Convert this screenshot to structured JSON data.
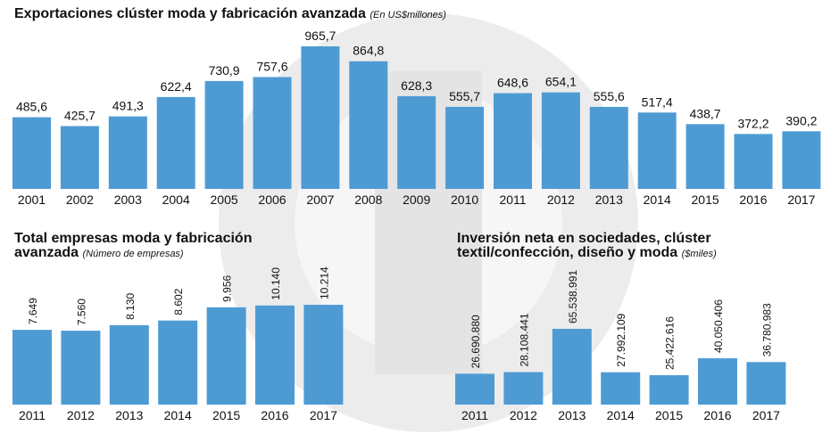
{
  "chart_data": [
    {
      "type": "bar",
      "title": [
        "Exportaciones clúster moda y fabricación avanzada"
      ],
      "subtitle": "(En US$millones)",
      "categories": [
        "2001",
        "2002",
        "2003",
        "2004",
        "2005",
        "2006",
        "2007",
        "2008",
        "2009",
        "2010",
        "2011",
        "2012",
        "2013",
        "2014",
        "2015",
        "2016",
        "2017"
      ],
      "values": [
        485.6,
        425.7,
        491.3,
        622.4,
        730.9,
        757.6,
        965.7,
        864.8,
        628.3,
        555.7,
        648.6,
        654.1,
        555.6,
        517.4,
        438.7,
        372.2,
        390.2
      ],
      "value_labels": [
        "485,6",
        "425,7",
        "491,3",
        "622,4",
        "730,9",
        "757,6",
        "965,7",
        "864,8",
        "628,3",
        "555,7",
        "648,6",
        "654,1",
        "555,6",
        "517,4",
        "438,7",
        "372,2",
        "390,2"
      ],
      "color": "#4e9bd4"
    },
    {
      "type": "bar",
      "title": [
        "Total empresas moda y fabricación",
        "avanzada"
      ],
      "subtitle": "(Número de empresas)",
      "categories": [
        "2011",
        "2012",
        "2013",
        "2014",
        "2015",
        "2016",
        "2017"
      ],
      "values": [
        7649,
        7560,
        8130,
        8602,
        9956,
        10140,
        10214
      ],
      "value_labels": [
        "7.649",
        "7.560",
        "8.130",
        "8.602",
        "9.956",
        "10.140",
        "10.214"
      ],
      "color": "#4e9bd4"
    },
    {
      "type": "bar",
      "title": [
        "Inversión neta en sociedades, clúster",
        "textil/confección, diseño y moda"
      ],
      "subtitle": "($miles)",
      "categories": [
        "2011",
        "2012",
        "2013",
        "2014",
        "2015",
        "2016",
        "2017"
      ],
      "values": [
        26690880,
        28108441,
        65538991,
        27992109,
        25422616,
        40050406,
        36780983
      ],
      "value_labels": [
        "26.690.880",
        "28.108.441",
        "65.538.991",
        "27.992.109",
        "25.422.616",
        "40.050.406",
        "36.780.983"
      ],
      "color": "#4e9bd4"
    }
  ]
}
